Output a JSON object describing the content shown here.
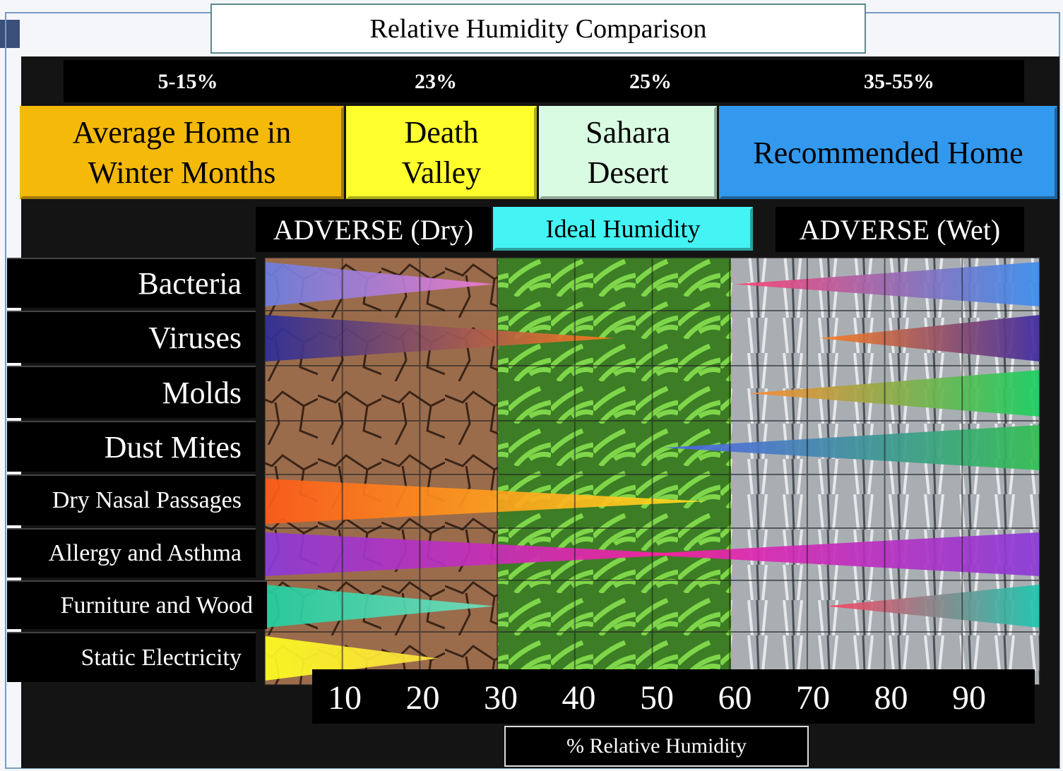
{
  "title": "Relative Humidity Comparison",
  "environments": [
    {
      "humidity": "5-15%",
      "label": "Average Home in Winter Months"
    },
    {
      "humidity": "23%",
      "label": "Death Valley"
    },
    {
      "humidity": "25%",
      "label": "Sahara Desert"
    },
    {
      "humidity": "35-55%",
      "label": "Recommended Home"
    }
  ],
  "zones": [
    "ADVERSE (Dry)",
    "Ideal Humidity",
    "ADVERSE (Wet)"
  ],
  "rows": [
    "Bacteria",
    "Viruses",
    "Molds",
    "Dust Mites",
    "Dry Nasal Passages",
    "Allergy and Asthma",
    "Furniture and Wood",
    "Static Electricity"
  ],
  "x_axis": {
    "ticks": [
      10,
      20,
      30,
      40,
      50,
      60,
      70,
      80,
      90
    ],
    "label": "% Relative Humidity"
  }
}
